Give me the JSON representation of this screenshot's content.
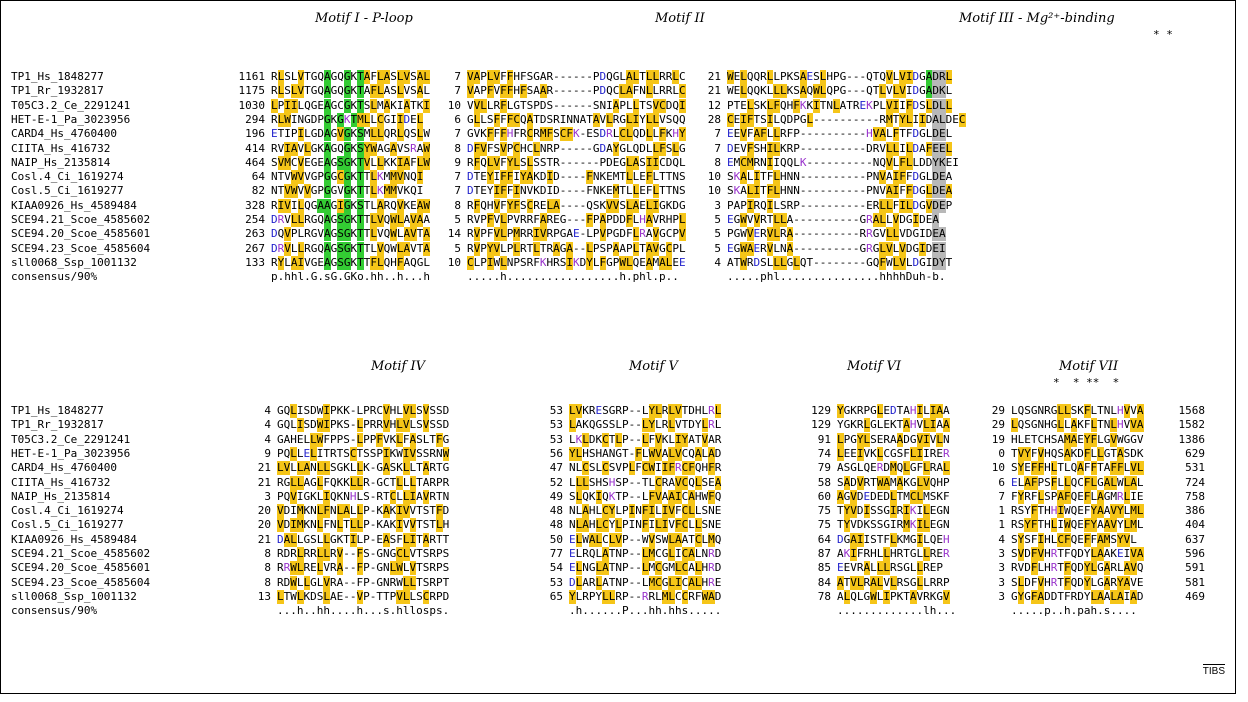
{
  "block1": {
    "headers": [
      {
        "text": "Motif I - P-loop"
      },
      {
        "text": "Motif II"
      },
      {
        "text": "Motif III - Mg²⁺-binding"
      }
    ],
    "stars": "* *",
    "rows": [
      {
        "name": "TP1_Hs_1848277",
        "start": "1161",
        "s1": "RLSLVTGQAGQGKTAFLASLVSAL",
        "g1": "7",
        "s2": "VAPLVFFHFSGAR------PDQGLALTLLRRLC",
        "g2": "21",
        "s3": "WELQQRLLPKSAESLHPG---QTQVLVIDGADRL"
      },
      {
        "name": "TP1_Rr_1932817",
        "start": "1175",
        "s1": "RLSLVTGQAGQGKTAFLASLVSAL",
        "g1": "7",
        "s2": "VAPFVFFHFSAAR------PDQCLAFNLLRRLC",
        "g2": "21",
        "s3": "WELQQKLLLKSAQWLQPG---QTLVLVIDGADKL"
      },
      {
        "name": "T05C3.2_Ce_2291241",
        "start": "1030",
        "s1": "LPIILQGEAGCGKTSLMAKIATKI",
        "g1": "10",
        "s2": "VVLLRFLGTSPDS------SNIAPLLTSVCDQI",
        "g2": "12",
        "s3": "PTELSKLFQHFKKITNLATREKPLVIIFDSLDLL"
      },
      {
        "name": "HET-E-1_Pa_3023956",
        "start": "294",
        "s1": "RLWINGDPGKGKTMLLCGIIDEL",
        "g1": "6",
        "s2": "GLLSFFFCQATDSRINNATAVLRGLIYLLVSQQ",
        "g2": "28",
        "s3": "CEIFTSILQDPGL----------RMTYLIIDALDEC"
      },
      {
        "name": "CARD4_Hs_4760400",
        "start": "196",
        "s1": "ETIPILGDAGVGKSMLLQRLQSLW",
        "g1": "7",
        "s2": "GVKFFFHFRCRMFSCFK-ESDRLCLQDLLFKHY",
        "g2": "7",
        "s3": "EEVFAFLLRFP----------HVALFTFDGLDEL"
      },
      {
        "name": "CIITA_Hs_416732",
        "start": "414",
        "s1": "RVIAVLGKAGQGKSYWAGAVSRAW",
        "g1": "8",
        "s2": "DFVFSVPCHCLNRP-----GDAYGLQDLLFSLG",
        "g2": "7",
        "s3": "DEVFSHILKRP----------DRVLLILDAFEEL"
      },
      {
        "name": "NAIP_Hs_2135814",
        "start": "464",
        "s1": "SVMCVEGEAGSGKTVLLKKIAFLW",
        "g1": "9",
        "s2": "RFQLVFYLSLSSTR------PDEGLASIICDQL",
        "g2": "8",
        "s3": "EMCMRNIIQQLK----------NQVLFLLDDYKEI"
      },
      {
        "name": "Cosl.4_Ci_1619274",
        "start": "64",
        "s1": "NTVWVVGPGGCGKTTLKMMVNQI",
        "g1": "7",
        "s2": "DTEYIFFIYAKDID----FNKEMTLLEFLTTNS",
        "g2": "10",
        "s3": "SKALITFLHNN----------PNVAIFFDGLDEA"
      },
      {
        "name": "Cosl.5_Ci_1619277",
        "start": "82",
        "s1": "NTVWVVGPGGVGKTTLKMMVKQI",
        "g1": "7",
        "s2": "DTEYIFFINVKDID----FNKEMTLLEFLTTNS",
        "g2": "10",
        "s3": "SKALITFLHNN----------PNVAIFFDGLDEA"
      },
      {
        "name": "KIAA0926_Hs_4589484",
        "start": "328",
        "s1": "RIVILQGAAGIGKSTLARQVKEAW",
        "g1": "8",
        "s2": "RFQHVFYFSCRELA----QSKVVSLAELIGKDG",
        "g2": "3",
        "s3": "PAPIRQILSRP----------ERLLFILDGVDEP"
      },
      {
        "name": "SCE94.21_Scoe_4585602",
        "start": "254",
        "s1": "DRVLLRGQAGSGKTTLVQWLAVAA",
        "g1": "5",
        "s2": "RVPFVLPVRRFAREG---FPAPDDFLHAVRHPL",
        "g2": "5",
        "s3": "EGWVVRTLLA----------GRALLVDGIDEA"
      },
      {
        "name": "SCE94.20_Scoe_4585601",
        "start": "263",
        "s1": "DQVPLRGVAGSGKTTLVQWLAVTA",
        "g1": "14",
        "s2": "RVPFVLPMRRIVRPGAE-LPVPGDFLRAVGCPV",
        "g2": "5",
        "s3": "PGWVERVLRA----------RRGVLLVDGIDEA"
      },
      {
        "name": "SCE94.23_Scoe_4585604",
        "start": "267",
        "s1": "DRVLLRGQAGSGKTTLVQWLAVTA",
        "g1": "5",
        "s2": "RVPYVLPLRTLTRAGA--LPSPAAPLTAVGCPL",
        "g2": "5",
        "s3": "EGWAERVLNA----------GRGLVLVDGIDEI"
      },
      {
        "name": "sll0068_Ssp_1001132",
        "start": "133",
        "s1": "RYLAIVGEAGSGKTTFLQHFAQGL",
        "g1": "10",
        "s2": "CLPIWLNPSRFKHRSIKDYLFGPWLQEAMALEE",
        "g2": "4",
        "s3": "ATWRDSLLLGLQT--------GQFWLVLDGIDYT"
      }
    ],
    "consensus": {
      "name": "consensus/90%",
      "s1": "p.hhl.G.sG.GKo.hh..h...h",
      "s2": ".....h.................h.phl.p..",
      "s3": ".....phl...............hhhhDuh-b."
    }
  },
  "block2": {
    "headers": [
      {
        "text": "Motif IV"
      },
      {
        "text": "Motif V"
      },
      {
        "text": "Motif VI"
      },
      {
        "text": "Motif VII"
      }
    ],
    "stars": "*  * **  *",
    "rows": [
      {
        "name": "TP1_Hs_1848277",
        "g0": "4",
        "s1": "GQLISDWIPKK-LPRCVHLVLSVSSD",
        "g1": "53",
        "s2": "LVKRESGRP--LYLRLVTDHLRL",
        "g2": "129",
        "s3": "YGKRPGLEDTAHILIAA",
        "g3": "29",
        "s4": "LQSGNRGLLSKFLTNLHVVA",
        "end": "1568"
      },
      {
        "name": "TP1_Rr_1932817",
        "g0": "4",
        "s1": "GQLISDWIPKS-LPRRVHLVLSVSSD",
        "g1": "53",
        "s2": "LAKQGSSLP--LYLRLVTDYLRL",
        "g2": "129",
        "s3": "YGKRLGLEKTAHVLIAA",
        "g3": "29",
        "s4": "LQSGNHGLLAKFLTNLHVVA",
        "end": "1582"
      },
      {
        "name": "T05C3.2_Ce_2291241",
        "g0": "4",
        "s1": "GAHELLWFPPS-LPPFVKLFASLTFG",
        "g1": "53",
        "s2": "LKLDKCTLP--LFVKLIYATVAR",
        "g2": "91",
        "s3": "LPGYLSERAADGVIVLN",
        "g3": "19",
        "s4": "HLETCHSAMAEYFLGVWGGV",
        "end": "1386"
      },
      {
        "name": "HET-E-1_Pa_3023956",
        "g0": "9",
        "s1": "PQLLELITRTSCTSSPIKWIVSSRNW",
        "g1": "56",
        "s2": "YLHSHANGT-FLWVALVCQALAD",
        "g2": "74",
        "s3": "LEEIVKLCGSFLIIRER",
        "g3": "0",
        "s4": "TVYFVHQSAKDFLLGTASDK",
        "end": "629"
      },
      {
        "name": "CARD4_Hs_4760400",
        "g0": "21",
        "s1": "LVLLANLLSGKLLK-GASKLLTARTG",
        "g1": "47",
        "s2": "NLCSLCSVPLFCWIIFRCFQHFR",
        "g2": "79",
        "s3": "ASGLQERDMQLGFLRAL",
        "g3": "10",
        "s4": "SYEFFHLTLQAFFTAFFLVL",
        "end": "531"
      },
      {
        "name": "CIITA_Hs_416732",
        "g0": "21",
        "s1": "RGLLAGLFQKKLLR-GCTLLLTARPR",
        "g1": "52",
        "s2": "LLLSHSHSP--TLCRAVCQLSEA",
        "g2": "58",
        "s3": "SADVRTWAMAKGLVQHP",
        "g3": "6",
        "s4": "ELAFPSFLLQCFLGALWLAL",
        "end": "724"
      },
      {
        "name": "NAIP_Hs_2135814",
        "g0": "3",
        "s1": "PQVIGKLIQKNHLS-RTCLLIAVRTN",
        "g1": "49",
        "s2": "SLQKIQKTP--LFVAAICAHWFQ",
        "g2": "60",
        "s3": "AGVDEDEDLTMCLMSKF",
        "g3": "7",
        "s4": "FYRFLSPAFQEFLAGMRLIE",
        "end": "758"
      },
      {
        "name": "Cosl.4_Ci_1619274",
        "g0": "20",
        "s1": "VDIMKNLFNLALLP-KAKIVVTSTFD",
        "g1": "48",
        "s2": "NLAHLCYLPINFILIVFCLLSNE",
        "g2": "75",
        "s3": "TYVDISSGIRIKILEGN",
        "g3": "1",
        "s4": "RSYFTHHIWQEFYAAVYLML",
        "end": "386"
      },
      {
        "name": "Cosl.5_Ci_1619277",
        "g0": "20",
        "s1": "VDIMKNLFNLTLLP-KAKIVVTSTLH",
        "g1": "48",
        "s2": "NLAHLCYLPINFILIVFCLLSNE",
        "g2": "75",
        "s3": "TYVDKSSGIRMKILEGN",
        "g3": "1",
        "s4": "RSYFTHLIWQEFYAAVYLML",
        "end": "404"
      },
      {
        "name": "KIAA0926_Hs_4589484",
        "g0": "21",
        "s1": "DALLGSLLGKTILP-EASFLITARTT",
        "g1": "50",
        "s2": "ELWALCLVP--WVSWLAATCLMQ",
        "g2": "64",
        "s3": "DGAIISTFLKMGILQEH",
        "g3": "4",
        "s4": "SYSFIHLCFQEFFAMSYVL",
        "end": "637"
      },
      {
        "name": "SCE94.21_Scoe_4585602",
        "g0": "8",
        "s1": "RDRLRRLLRV--FS-GNGCLVTSRPS",
        "g1": "77",
        "s2": "ELRQLATNP--LMCGLICALNRD",
        "g2": "87",
        "s3": "AKIFRHLLHRTGLLRER",
        "g3": "3",
        "s4": "SVDFVHRTFQDYLAAKEIVA",
        "end": "596"
      },
      {
        "name": "SCE94.20_Scoe_4585601",
        "g0": "8",
        "s1": "RRWLRELVRA--FP-GNLWLVTSRPS",
        "g1": "54",
        "s2": "ELNGLATNP--LMCGMLCALHRD",
        "g2": "85",
        "s3": "EEVRALLLRSGLLREP",
        "g3": "3",
        "s4": "RVDFLHRTFQDYLGARLAVQ",
        "end": "591"
      },
      {
        "name": "SCE94.23_Scoe_4585604",
        "g0": "8",
        "s1": "RDWLLGLVRA--FP-GNRWLLTSRPT",
        "g1": "53",
        "s2": "DLARLATNP--LMCGLICALHRE",
        "g2": "84",
        "s3": "ATVLRALVLRSGLLRRP",
        "g3": "3",
        "s4": "SLDFVHRTFQDYLGARYAVE",
        "end": "581"
      },
      {
        "name": "sll0068_Ssp_1001132",
        "g0": "13",
        "s1": "LTWLKDSLAE--VP-TTPVLLSCRPD",
        "g1": "65",
        "s2": "YLRPYLLRP--RRLMLCCRFWAD",
        "g2": "78",
        "s3": "ALQLGWLIPKTAVRKGV",
        "g3": "3",
        "s4": "GYGFADDTFRDYLAALAIAD",
        "end": "469"
      }
    ],
    "consensus": {
      "name": "consensus/90%",
      "s1": "...h..hh....h...s.hllosps.",
      "s2": ".h......P...hh.hhs.....",
      "s3": ".............lh...",
      "s4": ".....p..h.pah.s...."
    }
  },
  "footer": {
    "label": "TIBS"
  },
  "colors": {
    "yellow": "#f5c518",
    "green": "#33cc33",
    "grey": "#b8b8b8",
    "blue": "#2222cc",
    "purple": "#9933cc"
  }
}
